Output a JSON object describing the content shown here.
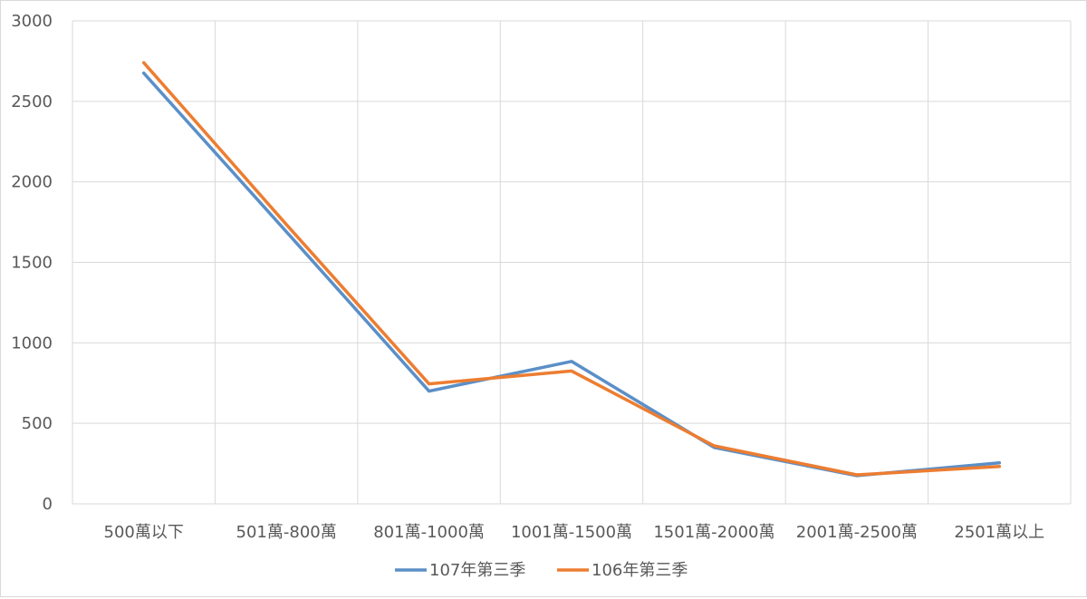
{
  "chart_data": {
    "type": "line",
    "title": "",
    "xlabel": "",
    "ylabel": "",
    "categories": [
      "500萬以下",
      "501萬-800萬",
      "801萬-1000萬",
      "1001萬-1500萬",
      "1501萬-2000萬",
      "2001萬-2500萬",
      "2501萬以上"
    ],
    "ylim": [
      0,
      3000
    ],
    "yticks": [
      "0",
      "500",
      "1000",
      "1500",
      "2000",
      "2500",
      "3000"
    ],
    "grid": true,
    "legend_position": "bottom",
    "series": [
      {
        "name": "107年第三季",
        "color": "#5b8fc7",
        "values": [
          2675,
          1690,
          700,
          885,
          350,
          175,
          255
        ]
      },
      {
        "name": "106年第三季",
        "color": "#ed7d31",
        "values": [
          2740,
          1735,
          745,
          825,
          360,
          180,
          232
        ]
      }
    ]
  }
}
